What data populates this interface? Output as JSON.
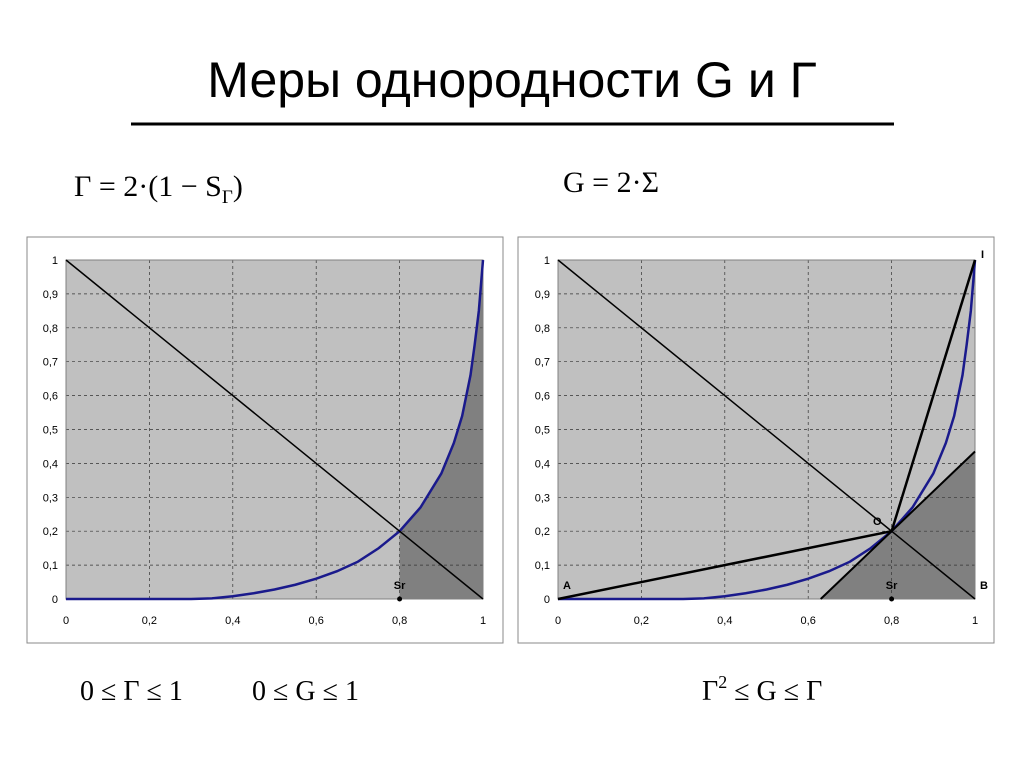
{
  "slide": {
    "title": "Меры однородности G и Г",
    "formula_left": {
      "main": "Γ = 2·(1 − S",
      "sub": "Γ",
      "tail": ")"
    },
    "formula_right": "G = 2·Σ",
    "bottom_left_1": "0 ≤ Γ ≤ 1",
    "bottom_left_2": "0 ≤ G ≤ 1",
    "bottom_right": {
      "base": "Γ",
      "sup": "2",
      "tail": " ≤ G ≤ Γ"
    }
  },
  "chart_data": [
    {
      "type": "line",
      "background": "#c0c0c0",
      "shade_color": "#808080",
      "shade_series": 0,
      "grid": true,
      "xlim": [
        0,
        1
      ],
      "ylim": [
        0,
        1
      ],
      "xticks": [
        0,
        {
          "value": 0.2,
          "label": "0,2"
        },
        {
          "value": 0.4,
          "label": "0,4"
        },
        {
          "value": 0.6,
          "label": "0,6"
        },
        {
          "value": 0.8,
          "label": "0,8"
        },
        1
      ],
      "yticks": [
        0,
        {
          "value": 0.1,
          "label": "0,1"
        },
        {
          "value": 0.2,
          "label": "0,2"
        },
        {
          "value": 0.3,
          "label": "0,3"
        },
        {
          "value": 0.4,
          "label": "0,4"
        },
        {
          "value": 0.5,
          "label": "0,5"
        },
        {
          "value": 0.6,
          "label": "0,6"
        },
        {
          "value": 0.7,
          "label": "0,7"
        },
        {
          "value": 0.8,
          "label": "0,8"
        },
        {
          "value": 0.9,
          "label": "0,9"
        },
        1
      ],
      "series": [
        {
          "color": "#1a1a8c",
          "width": 2.5,
          "x": [
            0,
            0.1,
            0.2,
            0.3,
            0.35,
            0.4,
            0.45,
            0.5,
            0.55,
            0.6,
            0.65,
            0.7,
            0.75,
            0.8,
            0.85,
            0.9,
            0.93,
            0.95,
            0.97,
            0.98,
            0.99,
            1
          ],
          "values": [
            0,
            0,
            0,
            0,
            0.002,
            0.008,
            0.017,
            0.028,
            0.042,
            0.06,
            0.082,
            0.11,
            0.15,
            0.2,
            0.27,
            0.37,
            0.46,
            0.54,
            0.66,
            0.75,
            0.85,
            1
          ]
        },
        {
          "color": "#000000",
          "width": 1.5,
          "x": [
            0,
            1
          ],
          "values": [
            1,
            0
          ]
        }
      ],
      "annotations": [
        {
          "text": "Sr",
          "x": 0.8,
          "y": 0,
          "anchor": "above",
          "marker": true
        }
      ]
    },
    {
      "type": "line",
      "background": "#c0c0c0",
      "shade_color": "#808080",
      "shade_series": 4,
      "grid": true,
      "xlim": [
        0,
        1
      ],
      "ylim": [
        0,
        1
      ],
      "xticks": [
        0,
        {
          "value": 0.2,
          "label": "0,2"
        },
        {
          "value": 0.4,
          "label": "0,4"
        },
        {
          "value": 0.6,
          "label": "0,6"
        },
        {
          "value": 0.8,
          "label": "0,8"
        },
        1
      ],
      "yticks": [
        0,
        {
          "value": 0.1,
          "label": "0,1"
        },
        {
          "value": 0.2,
          "label": "0,2"
        },
        {
          "value": 0.3,
          "label": "0,3"
        },
        {
          "value": 0.4,
          "label": "0,4"
        },
        {
          "value": 0.5,
          "label": "0,5"
        },
        {
          "value": 0.6,
          "label": "0,6"
        },
        {
          "value": 0.7,
          "label": "0,7"
        },
        {
          "value": 0.8,
          "label": "0,8"
        },
        {
          "value": 0.9,
          "label": "0,9"
        },
        1
      ],
      "series": [
        {
          "color": "#1a1a8c",
          "width": 2.5,
          "x": [
            0,
            0.1,
            0.2,
            0.3,
            0.35,
            0.4,
            0.45,
            0.5,
            0.55,
            0.6,
            0.65,
            0.7,
            0.75,
            0.8,
            0.85,
            0.9,
            0.93,
            0.95,
            0.97,
            0.98,
            0.99,
            1
          ],
          "values": [
            0,
            0,
            0,
            0,
            0.002,
            0.008,
            0.017,
            0.028,
            0.042,
            0.06,
            0.082,
            0.11,
            0.15,
            0.2,
            0.27,
            0.37,
            0.46,
            0.54,
            0.66,
            0.75,
            0.85,
            1
          ]
        },
        {
          "color": "#000000",
          "width": 1.5,
          "x": [
            0,
            1
          ],
          "values": [
            1,
            0
          ]
        },
        {
          "color": "#000000",
          "width": 2.5,
          "x": [
            0,
            0.8
          ],
          "values": [
            0,
            0.2
          ]
        },
        {
          "color": "#000000",
          "width": 2.5,
          "x": [
            0.8,
            1
          ],
          "values": [
            0.2,
            1
          ]
        },
        {
          "color": "#000000",
          "width": 2,
          "x": [
            0.63,
            1
          ],
          "values": [
            0,
            0.435
          ]
        }
      ],
      "annotations": [
        {
          "text": "Sr",
          "x": 0.8,
          "y": 0,
          "anchor": "above",
          "marker": true
        },
        {
          "text": "O",
          "x": 0.8,
          "y": 0.2,
          "anchor": "left"
        },
        {
          "text": "A",
          "x": 0,
          "y": 0,
          "anchor": "above-right"
        },
        {
          "text": "B",
          "x": 1,
          "y": 0,
          "anchor": "above-right"
        },
        {
          "text": "I",
          "x": 1,
          "y": 1,
          "anchor": "right"
        }
      ]
    }
  ]
}
